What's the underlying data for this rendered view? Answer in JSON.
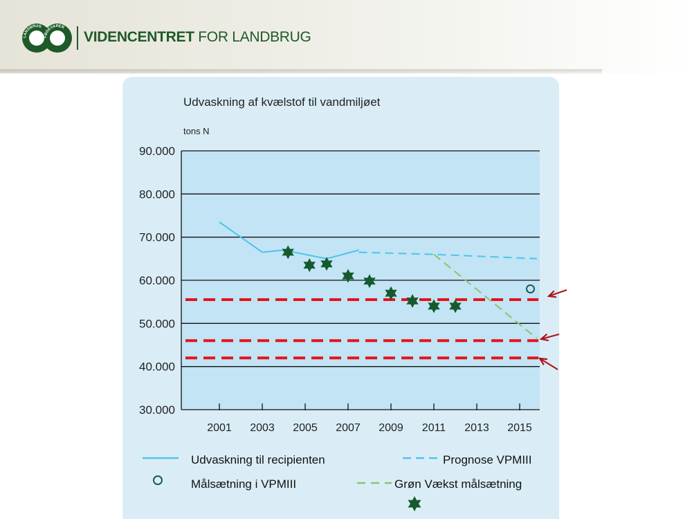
{
  "header": {
    "brand_bold": "VIDENCENTRET",
    "brand_light": " FOR LANDBRUG",
    "logo_ring_left": "LANDBRUG",
    "logo_ring_right": "FØDEVARER"
  },
  "colors": {
    "brand_green": "#1e5a28",
    "panel_bg": "#daedf7",
    "plot_bg": "#c2e4f5",
    "actual_line": "#4fc3ec",
    "forecast_line": "#4fc3ec",
    "green_growth": "#8cc46a",
    "stars": "#155a2e",
    "target_circle": "#1a5a52",
    "red_dashed": "#e3141b",
    "arrows": "#b0121a"
  },
  "chart_data": {
    "type": "line",
    "title": "Udvaskning af kvælstof til vandmiljøet",
    "ylabel": "tons N",
    "xlabel": "",
    "xlim": [
      2000.5,
      2016
    ],
    "ylim": [
      30000,
      90000
    ],
    "x_ticks": [
      2001,
      2003,
      2005,
      2007,
      2009,
      2011,
      2013,
      2015
    ],
    "y_ticks": [
      30000,
      40000,
      50000,
      60000,
      70000,
      80000,
      90000
    ],
    "y_tick_labels": [
      "30.000",
      "40.000",
      "50.000",
      "60.000",
      "70.000",
      "80.000",
      "90.000"
    ],
    "grid": "horizontal",
    "legend_position": "bottom",
    "series": [
      {
        "name": "Udvaskning til recipienten",
        "style": "solid",
        "x": [
          2001,
          2003,
          2004,
          2006,
          2007.5
        ],
        "y": [
          73500,
          66500,
          67000,
          65000,
          67000
        ]
      },
      {
        "name": "Prognose VPMIII",
        "style": "dashed",
        "x": [
          2007.5,
          2011,
          2015.8
        ],
        "y": [
          66500,
          66000,
          65000
        ]
      },
      {
        "name": "Grøn Vækst målsætning",
        "style": "dashed",
        "x": [
          2011,
          2015.8
        ],
        "y": [
          66000,
          46500
        ]
      },
      {
        "name": "Målsætning i VPMIII",
        "style": "marker-circle",
        "x": [
          2015.5
        ],
        "y": [
          58000
        ]
      },
      {
        "name": "",
        "style": "marker-star",
        "x": [
          2004.2,
          2005.2,
          2006,
          2007,
          2008,
          2009,
          2010,
          2011,
          2012
        ],
        "y": [
          66500,
          63500,
          63800,
          61000,
          59800,
          57000,
          55200,
          54000,
          54000
        ]
      }
    ],
    "reference_lines": [
      55500,
      46000,
      42000
    ],
    "legend": [
      {
        "label": "Udvaskning til recipienten",
        "style": "solid"
      },
      {
        "label": "Prognose VPMIII",
        "style": "dashed"
      },
      {
        "label": "Målsætning i VPMIII",
        "style": "marker-circle"
      },
      {
        "label": "Grøn Vækst målsætning",
        "style": "dashed-green"
      },
      {
        "label": "",
        "style": "marker-star"
      }
    ]
  }
}
